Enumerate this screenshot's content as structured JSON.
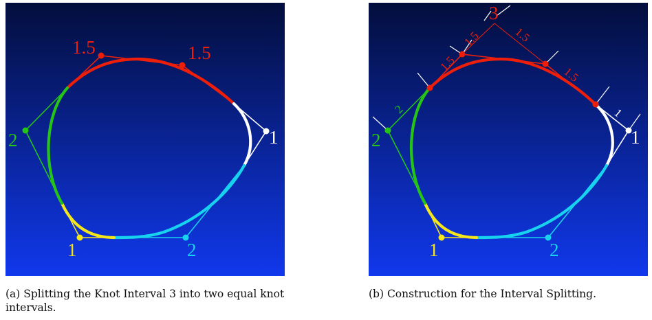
{
  "colors": {
    "background_top": "#030e3c",
    "background_bottom": "#1038ec",
    "red": "#ee1f0a",
    "white": "#ffffff",
    "cyan": "#17d3ee",
    "yellow": "#f4e61a",
    "green": "#25c417"
  },
  "figure_a": {
    "labels": {
      "top_left": "1.5",
      "top_right": "1.5",
      "right": "1",
      "left": "2",
      "bottom_left": "1",
      "bottom_right": "2"
    },
    "caption": "(a) Splitting the Knot Interval 3 into two equal knot intervals."
  },
  "figure_b": {
    "labels": {
      "apex": "3",
      "seg_top_left_outer": "1.5",
      "seg_top_left_inner": "1.5",
      "seg_top_right_outer": "1.5",
      "seg_top_right_inner": "1.5",
      "seg_right": "1",
      "seg_left": "2",
      "right": "1",
      "left": "2",
      "bottom_left": "1",
      "bottom_right": "2"
    },
    "caption": "(b) Construction for the Interval Splitting."
  }
}
